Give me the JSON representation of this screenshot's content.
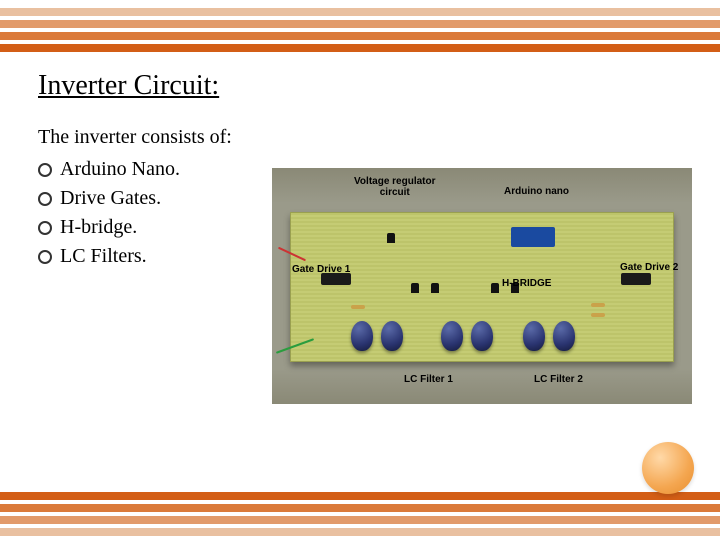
{
  "stripes": {
    "colors": [
      "#e9c0a0",
      "#e29a6a",
      "#db7a3a",
      "#d35e16"
    ],
    "top_positions": [
      8,
      20,
      32,
      44
    ],
    "bottom_positions": [
      528,
      516,
      504,
      492
    ],
    "height": 8
  },
  "title": "Inverter Circuit:",
  "intro": "The inverter consists of:",
  "bullets": [
    "Arduino Nano.",
    "Drive Gates.",
    "H-bridge.",
    "LC Filters."
  ],
  "photo_labels": {
    "voltage_regulator": "Voltage regulator\ncircuit",
    "arduino_nano": "Arduino nano",
    "gate_drive_1": "Gate Drive 1",
    "h_bridge": "H-BRIDGE",
    "gate_drive_2": "Gate Drive 2",
    "lc_filter_1": "LC Filter 1",
    "lc_filter_2": "LC Filter 2"
  },
  "accent_color": "#f4a650"
}
